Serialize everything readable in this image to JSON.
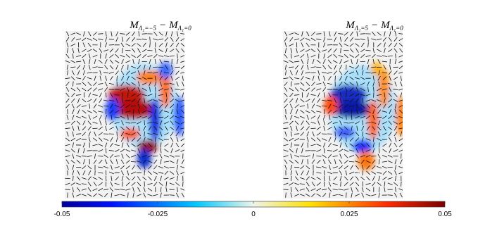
{
  "chart_data": {
    "type": "heatmap",
    "panels": [
      {
        "title": {
          "left": "M",
          "left_sub": "Λ₁=−5",
          "op": "−",
          "right": "M",
          "right_sub": "Λ₁=0"
        }
      },
      {
        "title": {
          "left": "M",
          "left_sub": "Λ₁=5",
          "op": "−",
          "right": "M",
          "right_sub": "Λ₁=0"
        }
      }
    ],
    "colorbar": {
      "clim": [
        -0.05,
        0.05
      ],
      "ticks": [
        -0.05,
        -0.025,
        0,
        0.025,
        0.05
      ],
      "colormap": "jet"
    }
  }
}
